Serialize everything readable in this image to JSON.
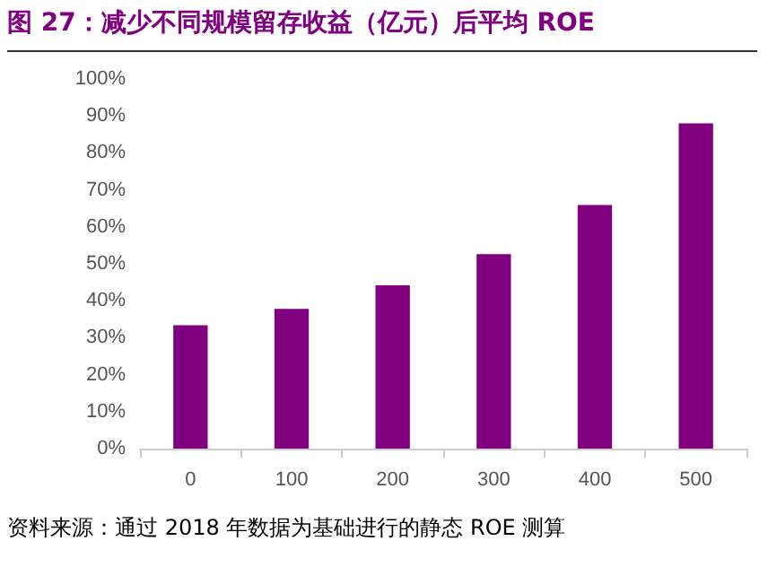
{
  "chart_data": {
    "type": "bar",
    "title": "图 27：减少不同规模留存收益（亿元）后平均 ROE",
    "categories": [
      "0",
      "100",
      "200",
      "300",
      "400",
      "500"
    ],
    "values": [
      33.4,
      37.8,
      44.2,
      52.6,
      65.9,
      88.0
    ],
    "color": "#800080",
    "ylim": [
      0,
      100
    ],
    "yticks": [
      {
        "value": 0,
        "label": "0%"
      },
      {
        "value": 10,
        "label": "10%"
      },
      {
        "value": 20,
        "label": "20%"
      },
      {
        "value": 30,
        "label": "30%"
      },
      {
        "value": 40,
        "label": "40%"
      },
      {
        "value": 50,
        "label": "50%"
      },
      {
        "value": 60,
        "label": "60%"
      },
      {
        "value": 70,
        "label": "70%"
      },
      {
        "value": 80,
        "label": "80%"
      },
      {
        "value": 90,
        "label": "90%"
      },
      {
        "value": 100,
        "label": "100%"
      }
    ],
    "grid": false,
    "annotations": [
      "资料来源：通过 2018 年数据为基础进行的静态 ROE 测算"
    ]
  }
}
